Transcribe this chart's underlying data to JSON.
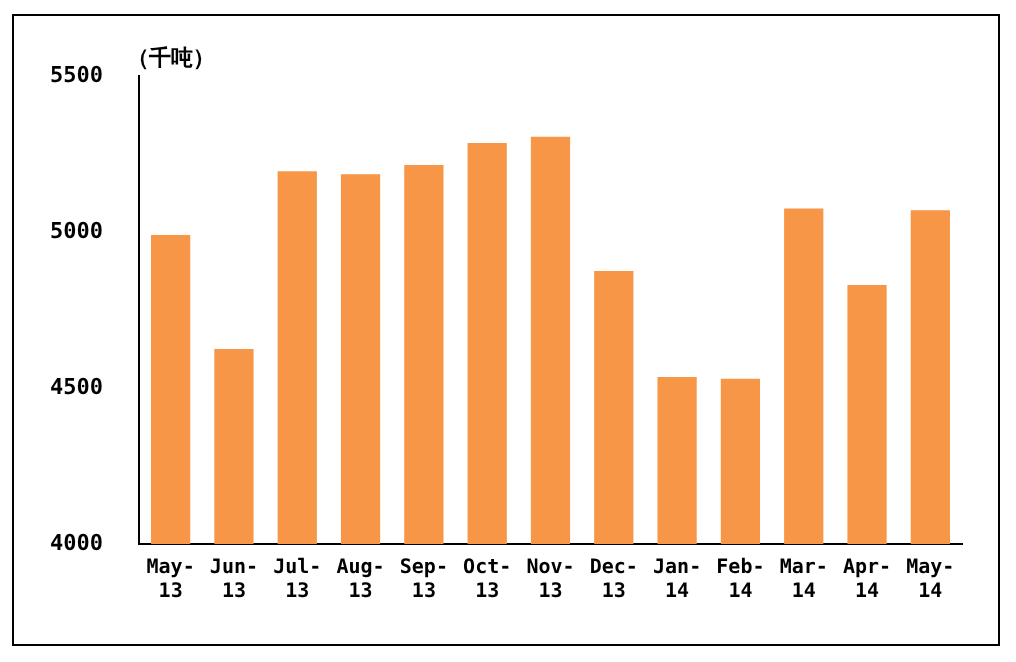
{
  "chart_data": {
    "type": "bar",
    "ylabel": "（千吨）",
    "categories": [
      "May-13",
      "Jun-13",
      "Jul-13",
      "Aug-13",
      "Sep-13",
      "Oct-13",
      "Nov-13",
      "Dec-13",
      "Jan-14",
      "Feb-14",
      "Mar-14",
      "Apr-14",
      "May-14"
    ],
    "values": [
      4990,
      4625,
      5195,
      5185,
      5215,
      5285,
      5305,
      4875,
      4535,
      4530,
      5075,
      4830,
      5070
    ],
    "color": "#f79646",
    "ylim": [
      4000,
      5500
    ],
    "yticks": [
      4000,
      4500,
      5000,
      5500
    ],
    "grid": false,
    "legend": false
  }
}
